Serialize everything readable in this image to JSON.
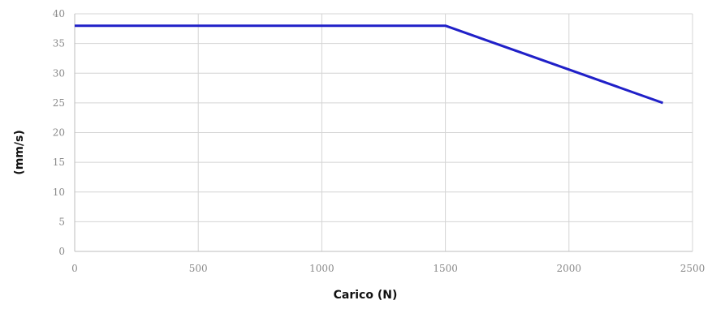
{
  "chart_data": {
    "type": "line",
    "title": "",
    "xlabel": "Carico (N)",
    "ylabel": "(mm/s)",
    "xlim": [
      0,
      2500
    ],
    "ylim": [
      0,
      40
    ],
    "x_ticks": [
      0,
      500,
      1000,
      1500,
      2000,
      2500
    ],
    "y_ticks": [
      0,
      5,
      10,
      15,
      20,
      25,
      30,
      35,
      40
    ],
    "grid": true,
    "legend": "none",
    "series": [
      {
        "color": "#2020c8",
        "x": [
          0,
          1500,
          2380
        ],
        "y": [
          38,
          38,
          25
        ]
      }
    ]
  },
  "colors": {
    "grid": "#d4d4d4",
    "axis": "#bdbdbd",
    "tick_text": "#8a8a8a",
    "line": "#2020c8"
  }
}
